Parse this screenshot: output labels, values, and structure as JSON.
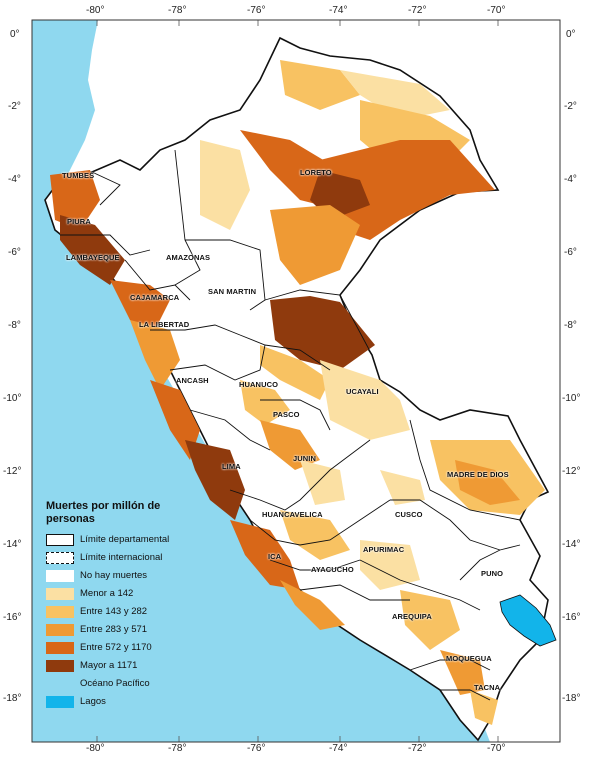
{
  "map": {
    "longitude_ticks": [
      "-80°",
      "-78°",
      "-76°",
      "-74°",
      "-72°",
      "-70°"
    ],
    "latitude_ticks": [
      "0°",
      "-2°",
      "-4°",
      "-6°",
      "-8°",
      "-10°",
      "-12°",
      "-14°",
      "-16°",
      "-18°"
    ],
    "departments": [
      "TUMBES",
      "PIURA",
      "LAMBAYEQUE",
      "CAJAMARCA",
      "AMAZONAS",
      "LORETO",
      "SAN MARTIN",
      "LA LIBERTAD",
      "ANCASH",
      "HUANUCO",
      "UCAYALI",
      "PASCO",
      "JUNIN",
      "LIMA",
      "HUANCAVELICA",
      "ICA",
      "AYACUCHO",
      "APURIMAC",
      "CUSCO",
      "MADRE DE DIOS",
      "PUNO",
      "AREQUIPA",
      "MOQUEGUA",
      "TACNA"
    ],
    "colors": {
      "ocean": "#8fd8ef",
      "lake": "#12b4ea",
      "land_outside": "#ffffff",
      "no_deaths": "#ffffff",
      "class1": "#fbe0a3",
      "class2": "#f8c262",
      "class3": "#ef9a34",
      "class4": "#d86718",
      "class5": "#8f3a0d",
      "boundary": "#111111"
    }
  },
  "legend": {
    "title": "Muertes por millón de personas",
    "items": [
      {
        "label": "Límite departamental",
        "symbol": "dept-boundary"
      },
      {
        "label": "Límite internacional",
        "symbol": "intl-boundary"
      },
      {
        "label": "No hay muertes",
        "symbol": "fill-none"
      },
      {
        "label": "Menor a 142",
        "symbol": "fill-1"
      },
      {
        "label": "Entre 143 y 282",
        "symbol": "fill-2"
      },
      {
        "label": "Entre 283 y 571",
        "symbol": "fill-3"
      },
      {
        "label": "Entre 572  y 1170",
        "symbol": "fill-4"
      },
      {
        "label": "Mayor a 1171",
        "symbol": "fill-5"
      },
      {
        "label": "Océano Pacífico",
        "symbol": "ocean"
      },
      {
        "label": "Lagos",
        "symbol": "lake"
      }
    ]
  }
}
